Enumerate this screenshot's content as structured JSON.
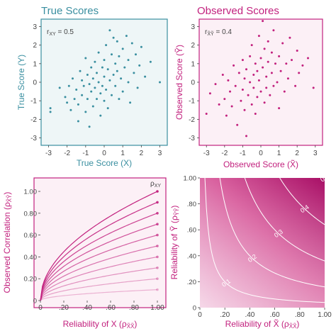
{
  "colors": {
    "teal": "#3a8fa0",
    "teal_bg": "#eef6f7",
    "magenta": "#c2217e",
    "magenta_bg": "#fcf0f6",
    "axis_text": "#444444"
  },
  "panels": {
    "tl": {
      "title": "True Scores",
      "xlabel": "True Score (X)",
      "ylabel": "True Score (Y)",
      "annotation": "r",
      "annotation_sub": "XY",
      "annotation_value": " = 0.5"
    },
    "tr": {
      "title": "Observed Scores",
      "xlabel": "Observed Score (X̃)",
      "ylabel": "Observed Score (Ỹ)",
      "annotation": "r",
      "annotation_sub": "X̃Ỹ",
      "annotation_value": " = 0.4"
    },
    "bl": {
      "xlabel": "Reliability of X (ρ",
      "xlabel_sub": "X̃X̃",
      "xlabel_end": ")",
      "ylabel": "Observed Correlation (ρ",
      "ylabel_sub": "X̃Ỹ",
      "ylabel_end": ")",
      "legend_label": "ρ",
      "legend_sub": "XY"
    },
    "br": {
      "xlabel": "Reliability of X̃ (ρ",
      "xlabel_sub": "X̃X̃",
      "xlabel_end": ")",
      "ylabel": "Reliability of Ỹ (ρ",
      "ylabel_sub": "ỸỸ",
      "ylabel_end": ")"
    }
  },
  "chart_data": [
    {
      "type": "scatter",
      "title": "True Scores",
      "xlabel": "True Score (X)",
      "ylabel": "True Score (Y)",
      "xlim": [
        -3.4,
        3.4
      ],
      "ylim": [
        -3.4,
        3.4
      ],
      "xticks": [
        -3,
        -2,
        -1,
        0,
        1,
        2,
        3
      ],
      "yticks": [
        -3,
        -2,
        -1,
        0,
        1,
        2,
        3
      ],
      "tick_labels": [
        "-3",
        "-2",
        "-1",
        "0",
        "1",
        "2",
        "3"
      ],
      "correlation": 0.5,
      "points": [
        [
          -2.9,
          -1.4
        ],
        [
          -2.9,
          -1.6
        ],
        [
          -2.4,
          -0.3
        ],
        [
          -2.1,
          -0.8
        ],
        [
          -2.0,
          -1.1
        ],
        [
          -1.9,
          -0.2
        ],
        [
          -1.8,
          -1.5
        ],
        [
          -1.7,
          0.2
        ],
        [
          -1.6,
          -0.9
        ],
        [
          -1.5,
          -0.4
        ],
        [
          -1.4,
          -2.1
        ],
        [
          -1.4,
          -1.2
        ],
        [
          -1.3,
          0.6
        ],
        [
          -1.2,
          0.1
        ],
        [
          -1.2,
          -0.7
        ],
        [
          -1.1,
          -0.2
        ],
        [
          -1.0,
          1.3
        ],
        [
          -1.0,
          -1.6
        ],
        [
          -0.9,
          0.4
        ],
        [
          -0.9,
          -0.9
        ],
        [
          -0.8,
          -0.1
        ],
        [
          -0.8,
          -2.4
        ],
        [
          -0.7,
          0.8
        ],
        [
          -0.7,
          -0.5
        ],
        [
          -0.6,
          0.2
        ],
        [
          -0.6,
          -1.3
        ],
        [
          -0.5,
          1.1
        ],
        [
          -0.5,
          -0.3
        ],
        [
          -0.4,
          0.5
        ],
        [
          -0.4,
          -0.9
        ],
        [
          -0.3,
          1.6
        ],
        [
          -0.3,
          0.0
        ],
        [
          -0.2,
          -0.6
        ],
        [
          -0.2,
          -1.8
        ],
        [
          -0.1,
          0.8
        ],
        [
          -0.1,
          -0.2
        ],
        [
          0.0,
          1.2
        ],
        [
          0.0,
          0.3
        ],
        [
          0.0,
          -1.0
        ],
        [
          0.1,
          2.0
        ],
        [
          0.1,
          -0.4
        ],
        [
          0.2,
          0.7
        ],
        [
          0.2,
          -1.4
        ],
        [
          0.3,
          2.8
        ],
        [
          0.3,
          0.1
        ],
        [
          0.4,
          1.5
        ],
        [
          0.4,
          -0.7
        ],
        [
          0.5,
          0.4
        ],
        [
          0.5,
          2.4
        ],
        [
          0.6,
          -0.2
        ],
        [
          0.6,
          1.0
        ],
        [
          0.7,
          0.6
        ],
        [
          0.7,
          2.2
        ],
        [
          0.8,
          -0.9
        ],
        [
          0.8,
          1.4
        ],
        [
          0.9,
          0.2
        ],
        [
          1.0,
          1.8
        ],
        [
          1.0,
          -0.5
        ],
        [
          1.1,
          0.8
        ],
        [
          1.2,
          2.5
        ],
        [
          1.3,
          0.0
        ],
        [
          1.3,
          1.2
        ],
        [
          1.4,
          -1.1
        ],
        [
          1.5,
          2.1
        ],
        [
          1.6,
          0.5
        ],
        [
          1.7,
          1.5
        ],
        [
          1.8,
          -0.3
        ],
        [
          1.9,
          0.9
        ],
        [
          2.0,
          1.9
        ],
        [
          2.2,
          0.3
        ],
        [
          2.5,
          1.1
        ],
        [
          3.0,
          0.0
        ]
      ]
    },
    {
      "type": "scatter",
      "title": "Observed Scores",
      "xlabel": "Observed Score (X̃)",
      "ylabel": "Observed Score (Ỹ)",
      "xlim": [
        -3.4,
        3.4
      ],
      "ylim": [
        -3.4,
        3.4
      ],
      "xticks": [
        -3,
        -2,
        -1,
        0,
        1,
        2,
        3
      ],
      "yticks": [
        -3,
        -2,
        -1,
        0,
        1,
        2,
        3
      ],
      "tick_labels": [
        "-3",
        "-2",
        "-1",
        "0",
        "1",
        "2",
        "3"
      ],
      "correlation": 0.4,
      "points": [
        [
          -3.0,
          -1.7
        ],
        [
          -2.8,
          -0.6
        ],
        [
          -2.5,
          -0.1
        ],
        [
          -2.3,
          -1.2
        ],
        [
          -2.1,
          0.4
        ],
        [
          -2.0,
          -0.9
        ],
        [
          -1.9,
          -1.8
        ],
        [
          -1.8,
          0.1
        ],
        [
          -1.7,
          -0.5
        ],
        [
          -1.6,
          -1.3
        ],
        [
          -1.5,
          0.9
        ],
        [
          -1.4,
          -0.2
        ],
        [
          -1.3,
          -2.3
        ],
        [
          -1.2,
          0.5
        ],
        [
          -1.1,
          -1.0
        ],
        [
          -1.0,
          1.2
        ],
        [
          -1.0,
          -0.4
        ],
        [
          -0.9,
          0.2
        ],
        [
          -0.9,
          -1.5
        ],
        [
          -0.8,
          -2.9
        ],
        [
          -0.8,
          0.7
        ],
        [
          -0.7,
          -0.7
        ],
        [
          -0.6,
          1.4
        ],
        [
          -0.6,
          0.0
        ],
        [
          -0.5,
          -1.2
        ],
        [
          -0.5,
          2.0
        ],
        [
          -0.4,
          0.4
        ],
        [
          -0.4,
          -0.3
        ],
        [
          -0.3,
          1.0
        ],
        [
          -0.3,
          -1.7
        ],
        [
          -0.2,
          0.6
        ],
        [
          -0.2,
          -0.8
        ],
        [
          -0.1,
          2.5
        ],
        [
          -0.1,
          0.1
        ],
        [
          0.0,
          1.3
        ],
        [
          0.0,
          -0.5
        ],
        [
          0.1,
          3.3
        ],
        [
          0.1,
          0.8
        ],
        [
          0.2,
          -1.1
        ],
        [
          0.2,
          1.8
        ],
        [
          0.3,
          0.3
        ],
        [
          0.3,
          -0.3
        ],
        [
          0.4,
          2.2
        ],
        [
          0.4,
          1.1
        ],
        [
          0.5,
          -0.7
        ],
        [
          0.6,
          0.5
        ],
        [
          0.6,
          1.6
        ],
        [
          0.7,
          2.8
        ],
        [
          0.7,
          -0.2
        ],
        [
          0.8,
          1.0
        ],
        [
          0.9,
          0.0
        ],
        [
          1.0,
          1.4
        ],
        [
          1.0,
          -1.4
        ],
        [
          1.1,
          0.6
        ],
        [
          1.2,
          2.1
        ],
        [
          1.3,
          -0.5
        ],
        [
          1.4,
          1.0
        ],
        [
          1.5,
          0.2
        ],
        [
          1.6,
          2.4
        ],
        [
          1.7,
          1.2
        ],
        [
          1.9,
          -0.2
        ],
        [
          2.0,
          1.7
        ],
        [
          2.1,
          0.5
        ],
        [
          2.3,
          0.9
        ],
        [
          2.6,
          1.3
        ],
        [
          2.9,
          -0.3
        ]
      ]
    },
    {
      "type": "line",
      "xlabel": "Reliability of X (ρX̃X̃)",
      "ylabel": "Observed Correlation (ρX̃Ỹ)",
      "xlim": [
        0,
        1
      ],
      "ylim": [
        0,
        1
      ],
      "xticks": [
        0,
        0.2,
        0.4,
        0.6,
        0.8,
        1.0
      ],
      "xtick_labels": [
        "0",
        ".20",
        ".40",
        ".60",
        ".80",
        "1.00"
      ],
      "yticks": [
        0,
        0.2,
        0.4,
        0.6,
        0.8,
        1.0
      ],
      "ytick_labels": [
        "0",
        "0.20",
        "0.40",
        "0.60",
        "0.80",
        "1.00"
      ],
      "legend": "ρXY",
      "formula": "y = rho_XY * sqrt(x)",
      "series_rho": [
        0.1,
        0.2,
        0.3,
        0.4,
        0.5,
        0.6,
        0.7,
        0.8,
        0.9,
        1.0
      ],
      "series_end_values": [
        0.1,
        0.2,
        0.3,
        0.4,
        0.5,
        0.6,
        0.7,
        0.8,
        0.9,
        1.0
      ]
    },
    {
      "type": "heatmap",
      "xlabel": "Reliability of X̃ (ρX̃X̃)",
      "ylabel": "Reliability of Ỹ (ρỸỸ)",
      "xlim": [
        0,
        1
      ],
      "ylim": [
        0,
        1
      ],
      "xticks": [
        0,
        0.2,
        0.4,
        0.6,
        0.8,
        1.0
      ],
      "xtick_labels": [
        "0",
        ".20",
        ".40",
        ".60",
        ".80",
        "1.00"
      ],
      "yticks": [
        0,
        0.2,
        0.4,
        0.6,
        0.8,
        1.0
      ],
      "ytick_labels": [
        "0",
        ".20",
        ".40",
        ".60",
        ".80",
        "1.00"
      ],
      "formula": "z = 0.5 * sqrt(x * y)",
      "contour_levels": [
        0.1,
        0.2,
        0.3,
        0.4,
        0.5
      ],
      "contour_labels": [
        "0.1",
        "0.2",
        "0.3",
        "0.4",
        "0.5"
      ]
    }
  ]
}
